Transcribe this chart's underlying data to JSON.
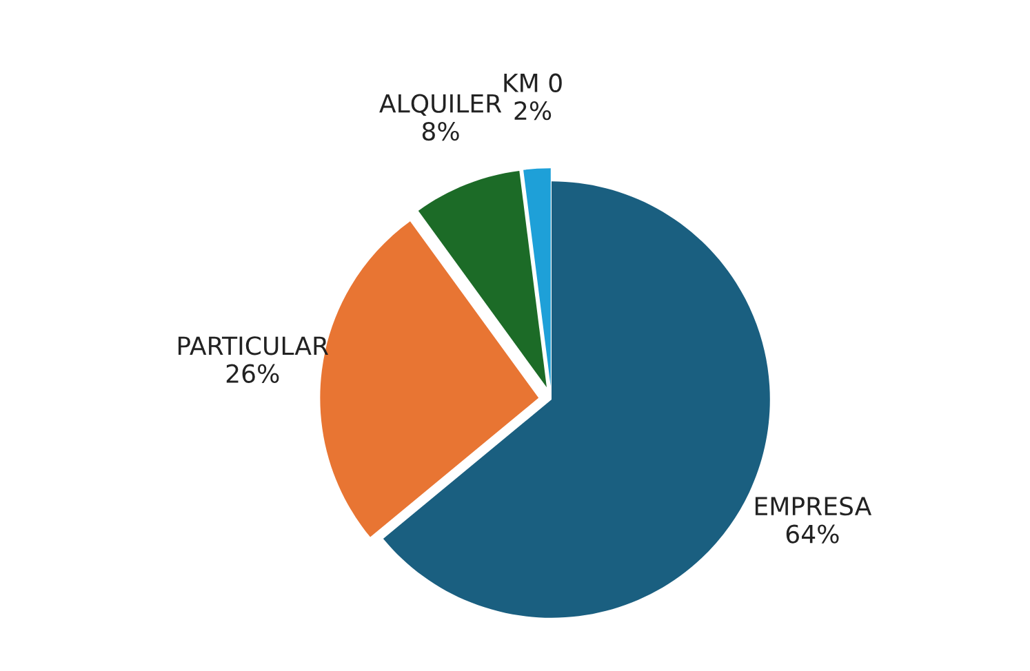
{
  "chart_data": {
    "type": "pie",
    "categories": [
      "EMPRESA",
      "PARTICULAR",
      "ALQUILER",
      "KM 0"
    ],
    "values": [
      64,
      26,
      8,
      2
    ],
    "value_labels": [
      "64%",
      "26%",
      "8%",
      "2%"
    ],
    "colors": [
      "#1a5f80",
      "#e87533",
      "#1c6b27",
      "#1ea0d8"
    ]
  }
}
